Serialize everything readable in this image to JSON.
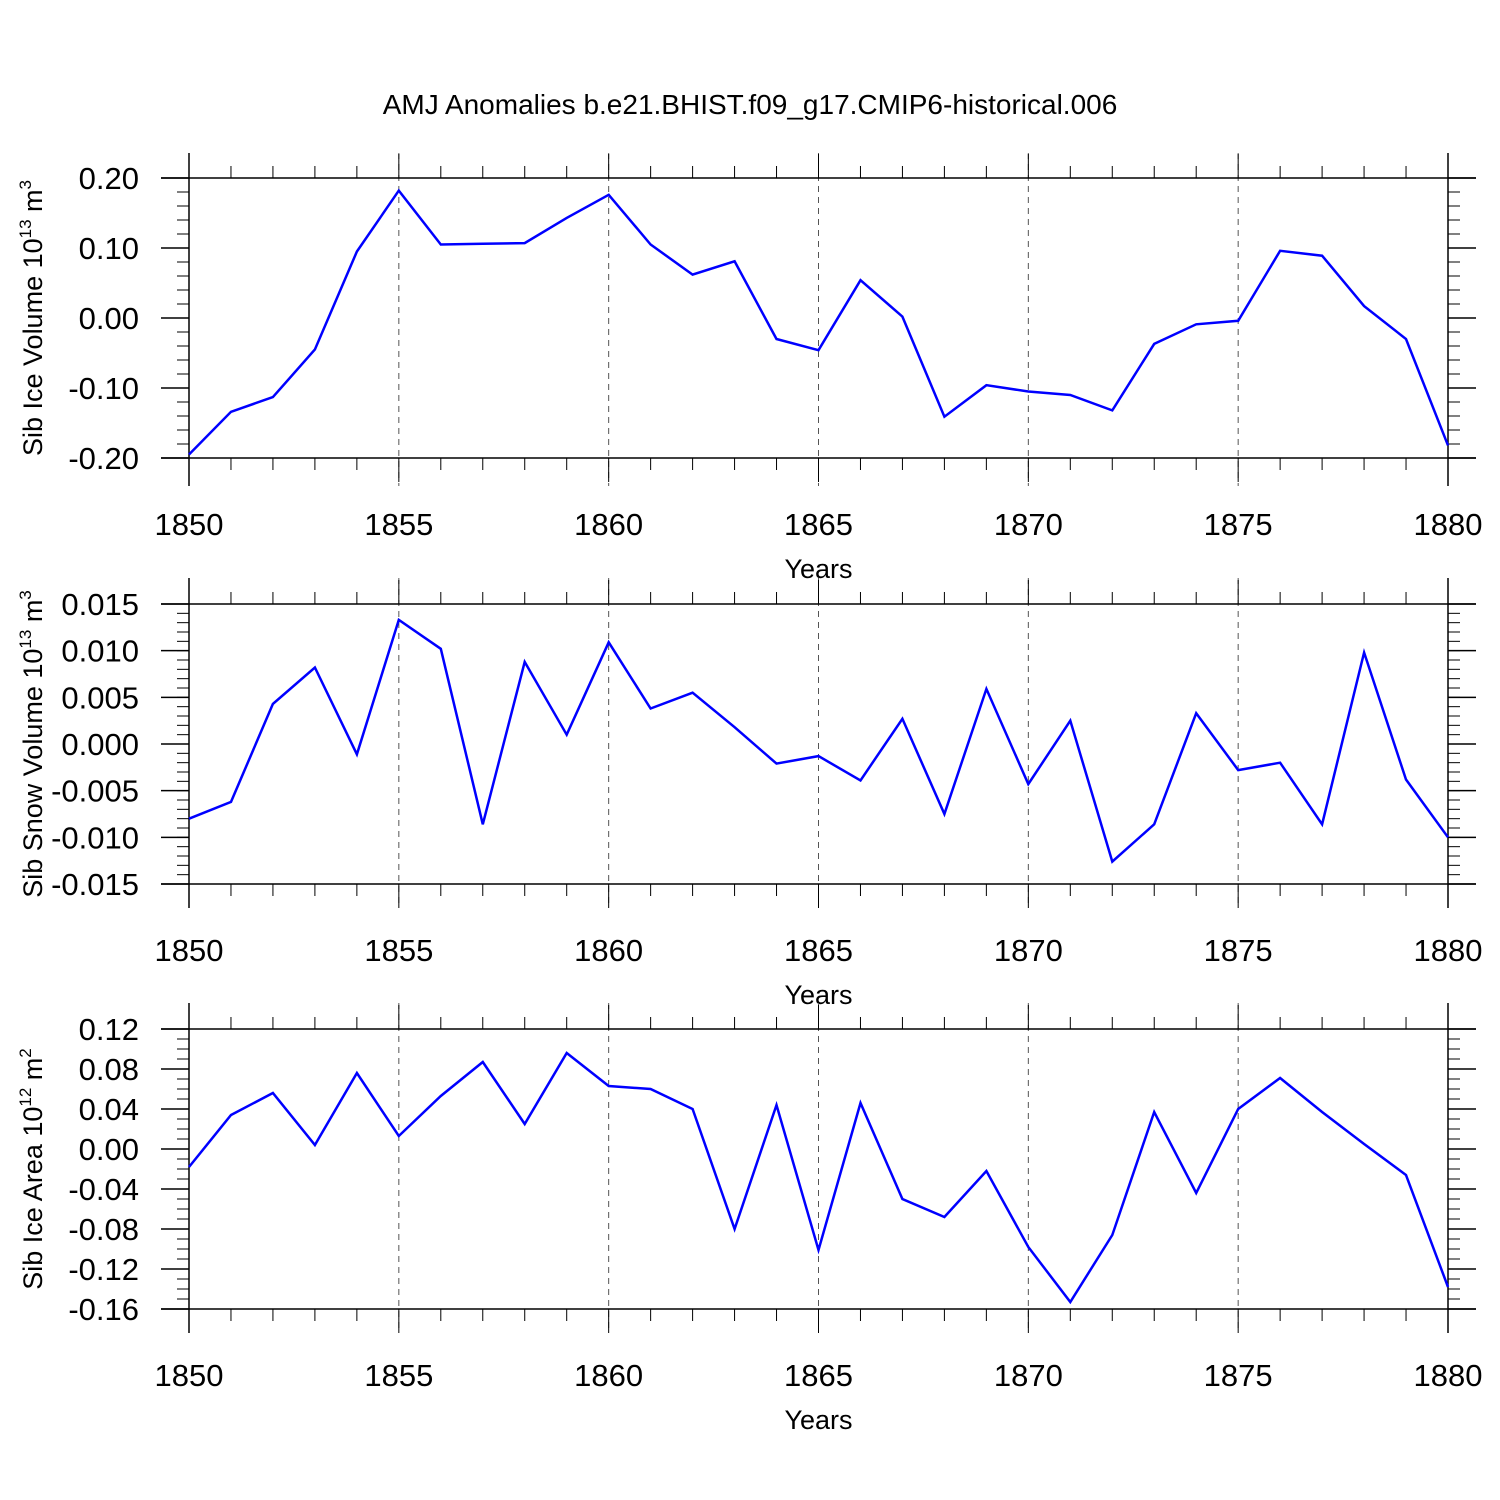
{
  "figure": {
    "title": "AMJ Anomalies b.e21.BHIST.f09_g17.CMIP6-historical.006"
  },
  "chart_data": [
    {
      "type": "line",
      "xlabel": "Years",
      "ylabel": "Sib Ice Volume 10",
      "ylabel_exp": "13",
      "ylabel_unit": " m",
      "ylabel_unit_exp": "3",
      "xlim": [
        1850,
        1880
      ],
      "ylim": [
        -0.2,
        0.2
      ],
      "x_ticks": [
        1850,
        1855,
        1860,
        1865,
        1870,
        1875,
        1880
      ],
      "x_tick_labels": [
        "1850",
        "1855",
        "1860",
        "1865",
        "1870",
        "1875",
        "1880"
      ],
      "y_ticks": [
        -0.2,
        -0.1,
        0.0,
        0.1,
        0.2
      ],
      "y_tick_labels": [
        "-0.20",
        "-0.10",
        "0.00",
        "0.10",
        "0.20"
      ],
      "y_minor_step": 0.02,
      "grid": "vertical dashed at major x ticks",
      "series": [
        {
          "color": "#0000ff",
          "x": [
            1850,
            1851,
            1852,
            1853,
            1854,
            1855,
            1856,
            1857,
            1858,
            1859,
            1860,
            1861,
            1862,
            1863,
            1864,
            1865,
            1866,
            1867,
            1868,
            1869,
            1870,
            1871,
            1872,
            1873,
            1874,
            1875,
            1876,
            1877,
            1878,
            1879,
            1880
          ],
          "y": [
            -0.195,
            -0.134,
            -0.113,
            -0.045,
            0.095,
            0.182,
            0.105,
            0.106,
            0.107,
            0.143,
            0.176,
            0.105,
            0.062,
            0.081,
            -0.03,
            -0.046,
            0.054,
            0.002,
            -0.141,
            -0.096,
            -0.105,
            -0.11,
            -0.132,
            -0.037,
            -0.009,
            -0.004,
            0.096,
            0.089,
            0.017,
            -0.03,
            -0.182
          ]
        }
      ]
    },
    {
      "type": "line",
      "xlabel": "Years",
      "ylabel": "Sib Snow Volume 10",
      "ylabel_exp": "13",
      "ylabel_unit": " m",
      "ylabel_unit_exp": "3",
      "xlim": [
        1850,
        1880
      ],
      "ylim": [
        -0.015,
        0.015
      ],
      "x_ticks": [
        1850,
        1855,
        1860,
        1865,
        1870,
        1875,
        1880
      ],
      "x_tick_labels": [
        "1850",
        "1855",
        "1860",
        "1865",
        "1870",
        "1875",
        "1880"
      ],
      "y_ticks": [
        -0.015,
        -0.01,
        -0.005,
        0.0,
        0.005,
        0.01,
        0.015
      ],
      "y_tick_labels": [
        "-0.015",
        "-0.010",
        "-0.005",
        "0.000",
        "0.005",
        "0.010",
        "0.015"
      ],
      "y_minor_step": 0.001,
      "grid": "vertical dashed at major x ticks",
      "series": [
        {
          "color": "#0000ff",
          "x": [
            1850,
            1851,
            1852,
            1853,
            1854,
            1855,
            1856,
            1857,
            1858,
            1859,
            1860,
            1861,
            1862,
            1863,
            1864,
            1865,
            1866,
            1867,
            1868,
            1869,
            1870,
            1871,
            1872,
            1873,
            1874,
            1875,
            1876,
            1877,
            1878,
            1879,
            1880
          ],
          "y": [
            -0.008,
            -0.0062,
            0.0043,
            0.0082,
            -0.0011,
            0.0133,
            0.0102,
            -0.0086,
            0.0088,
            0.001,
            0.0109,
            0.0038,
            0.0055,
            0.0018,
            -0.0021,
            -0.0013,
            -0.0039,
            0.0027,
            -0.0075,
            0.0059,
            -0.0043,
            0.0025,
            -0.0126,
            -0.0086,
            0.0033,
            -0.0028,
            -0.002,
            -0.0086,
            0.0098,
            -0.0038,
            -0.01
          ]
        }
      ]
    },
    {
      "type": "line",
      "xlabel": "Years",
      "ylabel": "Sib Ice Area 10",
      "ylabel_exp": "12",
      "ylabel_unit": " m",
      "ylabel_unit_exp": "2",
      "xlim": [
        1850,
        1880
      ],
      "ylim": [
        -0.16,
        0.12
      ],
      "x_ticks": [
        1850,
        1855,
        1860,
        1865,
        1870,
        1875,
        1880
      ],
      "x_tick_labels": [
        "1850",
        "1855",
        "1860",
        "1865",
        "1870",
        "1875",
        "1880"
      ],
      "y_ticks": [
        -0.16,
        -0.12,
        -0.08,
        -0.04,
        0.0,
        0.04,
        0.08,
        0.12
      ],
      "y_tick_labels": [
        "-0.16",
        "-0.12",
        "-0.08",
        "-0.04",
        "0.00",
        "0.04",
        "0.08",
        "0.12"
      ],
      "y_minor_step": 0.01,
      "grid": "vertical dashed at major x ticks",
      "series": [
        {
          "color": "#0000ff",
          "x": [
            1850,
            1851,
            1852,
            1853,
            1854,
            1855,
            1856,
            1857,
            1858,
            1859,
            1860,
            1861,
            1862,
            1863,
            1864,
            1865,
            1866,
            1867,
            1868,
            1869,
            1870,
            1871,
            1872,
            1873,
            1874,
            1875,
            1876,
            1877,
            1878,
            1879,
            1880
          ],
          "y": [
            -0.018,
            0.034,
            0.056,
            0.004,
            0.076,
            0.013,
            0.053,
            0.087,
            0.025,
            0.096,
            0.063,
            0.06,
            0.04,
            -0.08,
            0.044,
            -0.101,
            0.046,
            -0.05,
            -0.068,
            -0.022,
            -0.098,
            -0.153,
            -0.086,
            0.037,
            -0.044,
            0.04,
            0.071,
            0.037,
            0.005,
            -0.026,
            -0.138
          ]
        }
      ]
    }
  ]
}
